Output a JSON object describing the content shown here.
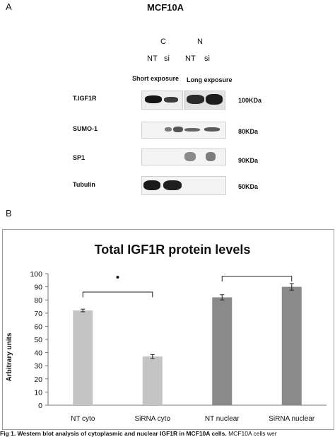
{
  "panel_a": {
    "letter": "A",
    "title": "MCF10A",
    "group_c": "C",
    "group_n": "N",
    "lane_labels": [
      "NT",
      "si",
      "NT",
      "si"
    ],
    "exposure_short": "Short exposure",
    "exposure_long": "Long exposure",
    "rows": [
      {
        "label": "T.IGF1R",
        "kda": "100KDa"
      },
      {
        "label": "SUMO-1",
        "kda": "80KDa"
      },
      {
        "label": "SP1",
        "kda": "90KDa"
      },
      {
        "label": "Tubulin",
        "kda": "50KDa"
      }
    ]
  },
  "panel_b": {
    "letter": "B"
  },
  "chart_data": {
    "type": "bar",
    "title": "Total IGF1R protein levels",
    "ylabel": "Arbitrary units",
    "xlabel": "",
    "categories": [
      "NT cyto",
      "SiRNA cyto",
      "NT nuclear",
      "SiRNA nuclear"
    ],
    "values": [
      72,
      37,
      82,
      90
    ],
    "errors": [
      1,
      1.5,
      2,
      2.5
    ],
    "bar_colors": [
      "#c4c4c4",
      "#c4c4c4",
      "#8a8a8a",
      "#8a8a8a"
    ],
    "ylim": [
      0,
      100
    ],
    "yticks": [
      "0",
      "10",
      "20",
      "30",
      "40",
      "50",
      "60",
      "70",
      "80",
      "90",
      "100"
    ],
    "significance_marker": "•",
    "grid": false,
    "legend": "none"
  },
  "caption": {
    "bold": "Fig 1. Western blot analysis of cytoplasmic and nuclear IGF1R in MCF10A cells.",
    "rest": " MCF10A cells wer"
  }
}
